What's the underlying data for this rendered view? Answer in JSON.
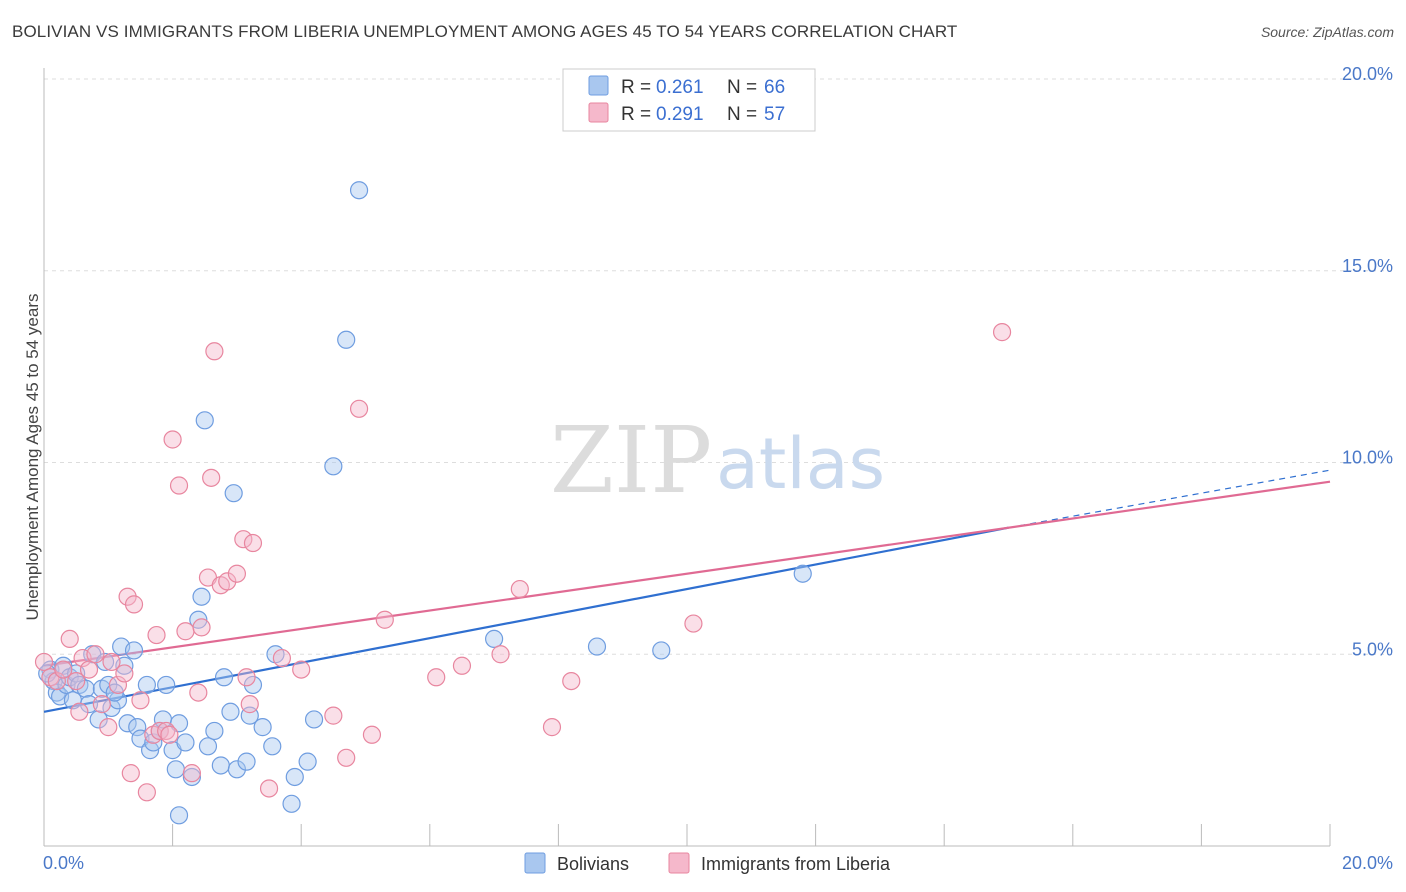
{
  "title": "BOLIVIAN VS IMMIGRANTS FROM LIBERIA UNEMPLOYMENT AMONG AGES 45 TO 54 YEARS CORRELATION CHART",
  "source": "Source: ZipAtlas.com",
  "watermark": {
    "zip": "ZIP",
    "atlas": "atlas"
  },
  "colors": {
    "blue_fill": "#a9c7ef",
    "blue_stroke": "#6f9de0",
    "blue_line": "#2f6fd0",
    "pink_fill": "#f5b8cb",
    "pink_stroke": "#e8869f",
    "pink_line": "#e06a93",
    "grid": "#dddddd",
    "axis_text": "#4a78c8"
  },
  "chart_data": {
    "type": "scatter",
    "title": "BOLIVIAN VS IMMIGRANTS FROM LIBERIA UNEMPLOYMENT AMONG AGES 45 TO 54 YEARS CORRELATION CHART",
    "ylabel": "Unemployment Among Ages 45 to 54 years",
    "xlabel": "",
    "xlim": [
      0,
      20
    ],
    "ylim": [
      0,
      20
    ],
    "x_tick_labels": [
      "0.0%",
      "20.0%"
    ],
    "y_ticks": [
      5,
      10,
      15,
      20
    ],
    "y_tick_labels": [
      "5.0%",
      "10.0%",
      "15.0%",
      "20.0%"
    ],
    "legend": [
      {
        "r_label": "R = ",
        "r_value": "0.261",
        "n_label": "N = ",
        "n_value": "66"
      },
      {
        "r_label": "R = ",
        "r_value": "0.291",
        "n_label": "N = ",
        "n_value": "57"
      }
    ],
    "series": [
      {
        "name": "Bolivians",
        "color": "blue",
        "trend": {
          "x0": 0,
          "y0": 3.5,
          "x1": 15,
          "y1": 8.3,
          "dash_to_x": 20,
          "dash_to_y": 9.8
        },
        "points": [
          [
            0.1,
            4.6
          ],
          [
            0.15,
            4.3
          ],
          [
            0.2,
            4.0
          ],
          [
            0.25,
            3.9
          ],
          [
            0.3,
            4.7
          ],
          [
            0.35,
            4.2
          ],
          [
            0.4,
            4.4
          ],
          [
            0.45,
            3.8
          ],
          [
            0.5,
            4.5
          ],
          [
            0.55,
            4.2
          ],
          [
            0.65,
            4.1
          ],
          [
            0.7,
            3.7
          ],
          [
            0.75,
            5.0
          ],
          [
            0.85,
            3.3
          ],
          [
            0.9,
            4.1
          ],
          [
            0.95,
            4.8
          ],
          [
            1.0,
            4.2
          ],
          [
            1.05,
            3.6
          ],
          [
            1.15,
            3.8
          ],
          [
            1.2,
            5.2
          ],
          [
            1.25,
            4.7
          ],
          [
            1.3,
            3.2
          ],
          [
            1.4,
            5.1
          ],
          [
            1.45,
            3.1
          ],
          [
            1.5,
            2.8
          ],
          [
            1.6,
            4.2
          ],
          [
            1.65,
            2.5
          ],
          [
            1.7,
            2.7
          ],
          [
            1.8,
            3.0
          ],
          [
            1.85,
            3.3
          ],
          [
            1.9,
            4.2
          ],
          [
            2.0,
            2.5
          ],
          [
            2.05,
            2.0
          ],
          [
            2.1,
            3.2
          ],
          [
            2.2,
            2.7
          ],
          [
            2.3,
            1.8
          ],
          [
            2.4,
            5.9
          ],
          [
            2.45,
            6.5
          ],
          [
            2.5,
            11.1
          ],
          [
            2.55,
            2.6
          ],
          [
            2.65,
            3.0
          ],
          [
            2.75,
            2.1
          ],
          [
            2.8,
            4.4
          ],
          [
            2.9,
            3.5
          ],
          [
            2.95,
            9.2
          ],
          [
            3.0,
            2.0
          ],
          [
            3.15,
            2.2
          ],
          [
            3.2,
            3.4
          ],
          [
            3.25,
            4.2
          ],
          [
            3.4,
            3.1
          ],
          [
            3.55,
            2.6
          ],
          [
            3.6,
            5.0
          ],
          [
            3.85,
            1.1
          ],
          [
            3.9,
            1.8
          ],
          [
            4.1,
            2.2
          ],
          [
            4.2,
            3.3
          ],
          [
            4.5,
            9.9
          ],
          [
            4.7,
            13.2
          ],
          [
            4.9,
            17.1
          ],
          [
            7.0,
            5.4
          ],
          [
            8.6,
            5.2
          ],
          [
            9.6,
            5.1
          ],
          [
            11.8,
            7.1
          ],
          [
            2.1,
            0.8
          ],
          [
            0.05,
            4.5
          ],
          [
            1.1,
            4.0
          ]
        ]
      },
      {
        "name": "Immigrants from Liberia",
        "color": "pink",
        "trend": {
          "x0": 0,
          "y0": 4.7,
          "x1": 20,
          "y1": 9.5
        },
        "points": [
          [
            0.0,
            4.8
          ],
          [
            0.1,
            4.4
          ],
          [
            0.2,
            4.3
          ],
          [
            0.3,
            4.6
          ],
          [
            0.4,
            5.4
          ],
          [
            0.5,
            4.3
          ],
          [
            0.6,
            4.9
          ],
          [
            0.7,
            4.6
          ],
          [
            0.8,
            5.0
          ],
          [
            0.9,
            3.7
          ],
          [
            1.0,
            3.1
          ],
          [
            1.05,
            4.8
          ],
          [
            1.15,
            4.2
          ],
          [
            1.25,
            4.5
          ],
          [
            1.3,
            6.5
          ],
          [
            1.35,
            1.9
          ],
          [
            1.4,
            6.3
          ],
          [
            1.5,
            3.8
          ],
          [
            1.6,
            1.4
          ],
          [
            1.7,
            2.9
          ],
          [
            1.75,
            5.5
          ],
          [
            1.8,
            3.0
          ],
          [
            1.9,
            3.0
          ],
          [
            2.0,
            10.6
          ],
          [
            2.1,
            9.4
          ],
          [
            2.2,
            5.6
          ],
          [
            2.3,
            1.9
          ],
          [
            2.4,
            4.0
          ],
          [
            2.45,
            5.7
          ],
          [
            2.55,
            7.0
          ],
          [
            2.6,
            9.6
          ],
          [
            2.65,
            12.9
          ],
          [
            2.75,
            6.8
          ],
          [
            2.85,
            6.9
          ],
          [
            3.0,
            7.1
          ],
          [
            3.1,
            8.0
          ],
          [
            3.15,
            4.4
          ],
          [
            3.2,
            3.7
          ],
          [
            3.25,
            7.9
          ],
          [
            3.5,
            1.5
          ],
          [
            3.7,
            4.9
          ],
          [
            4.0,
            4.6
          ],
          [
            4.5,
            3.4
          ],
          [
            4.7,
            2.3
          ],
          [
            4.9,
            11.4
          ],
          [
            5.1,
            2.9
          ],
          [
            5.3,
            5.9
          ],
          [
            6.1,
            4.4
          ],
          [
            6.5,
            4.7
          ],
          [
            7.1,
            5.0
          ],
          [
            7.4,
            6.7
          ],
          [
            7.9,
            3.1
          ],
          [
            8.2,
            4.3
          ],
          [
            10.1,
            5.8
          ],
          [
            14.9,
            13.4
          ],
          [
            0.55,
            3.5
          ],
          [
            1.95,
            2.9
          ]
        ]
      }
    ]
  }
}
